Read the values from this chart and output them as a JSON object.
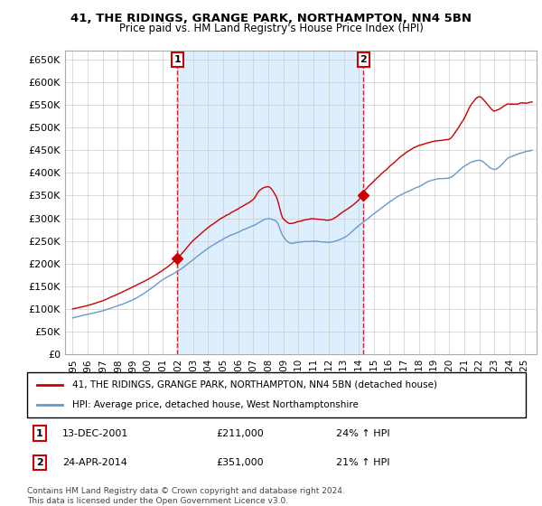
{
  "title1": "41, THE RIDINGS, GRANGE PARK, NORTHAMPTON, NN4 5BN",
  "title2": "Price paid vs. HM Land Registry's House Price Index (HPI)",
  "ylim": [
    0,
    670000
  ],
  "yticks": [
    0,
    50000,
    100000,
    150000,
    200000,
    250000,
    300000,
    350000,
    400000,
    450000,
    500000,
    550000,
    600000,
    650000
  ],
  "ytick_labels": [
    "£0",
    "£50K",
    "£100K",
    "£150K",
    "£200K",
    "£250K",
    "£300K",
    "£350K",
    "£400K",
    "£450K",
    "£500K",
    "£550K",
    "£600K",
    "£650K"
  ],
  "sale1_x": 2001.96,
  "sale1_y": 211000,
  "sale2_x": 2014.31,
  "sale2_y": 351000,
  "sale1_date": "13-DEC-2001",
  "sale1_price": "£211,000",
  "sale1_hpi": "24% ↑ HPI",
  "sale2_date": "24-APR-2014",
  "sale2_price": "£351,000",
  "sale2_hpi": "21% ↑ HPI",
  "line1_color": "#cc0000",
  "line2_color": "#6699cc",
  "shade_color": "#ddeeff",
  "vline_color": "#cc0000",
  "background_color": "#ffffff",
  "grid_color": "#cccccc",
  "legend1": "41, THE RIDINGS, GRANGE PARK, NORTHAMPTON, NN4 5BN (detached house)",
  "legend2": "HPI: Average price, detached house, West Northamptonshire",
  "footer1": "Contains HM Land Registry data © Crown copyright and database right 2024.",
  "footer2": "This data is licensed under the Open Government Licence v3.0.",
  "xlim_left": 1994.5,
  "xlim_right": 2025.8
}
